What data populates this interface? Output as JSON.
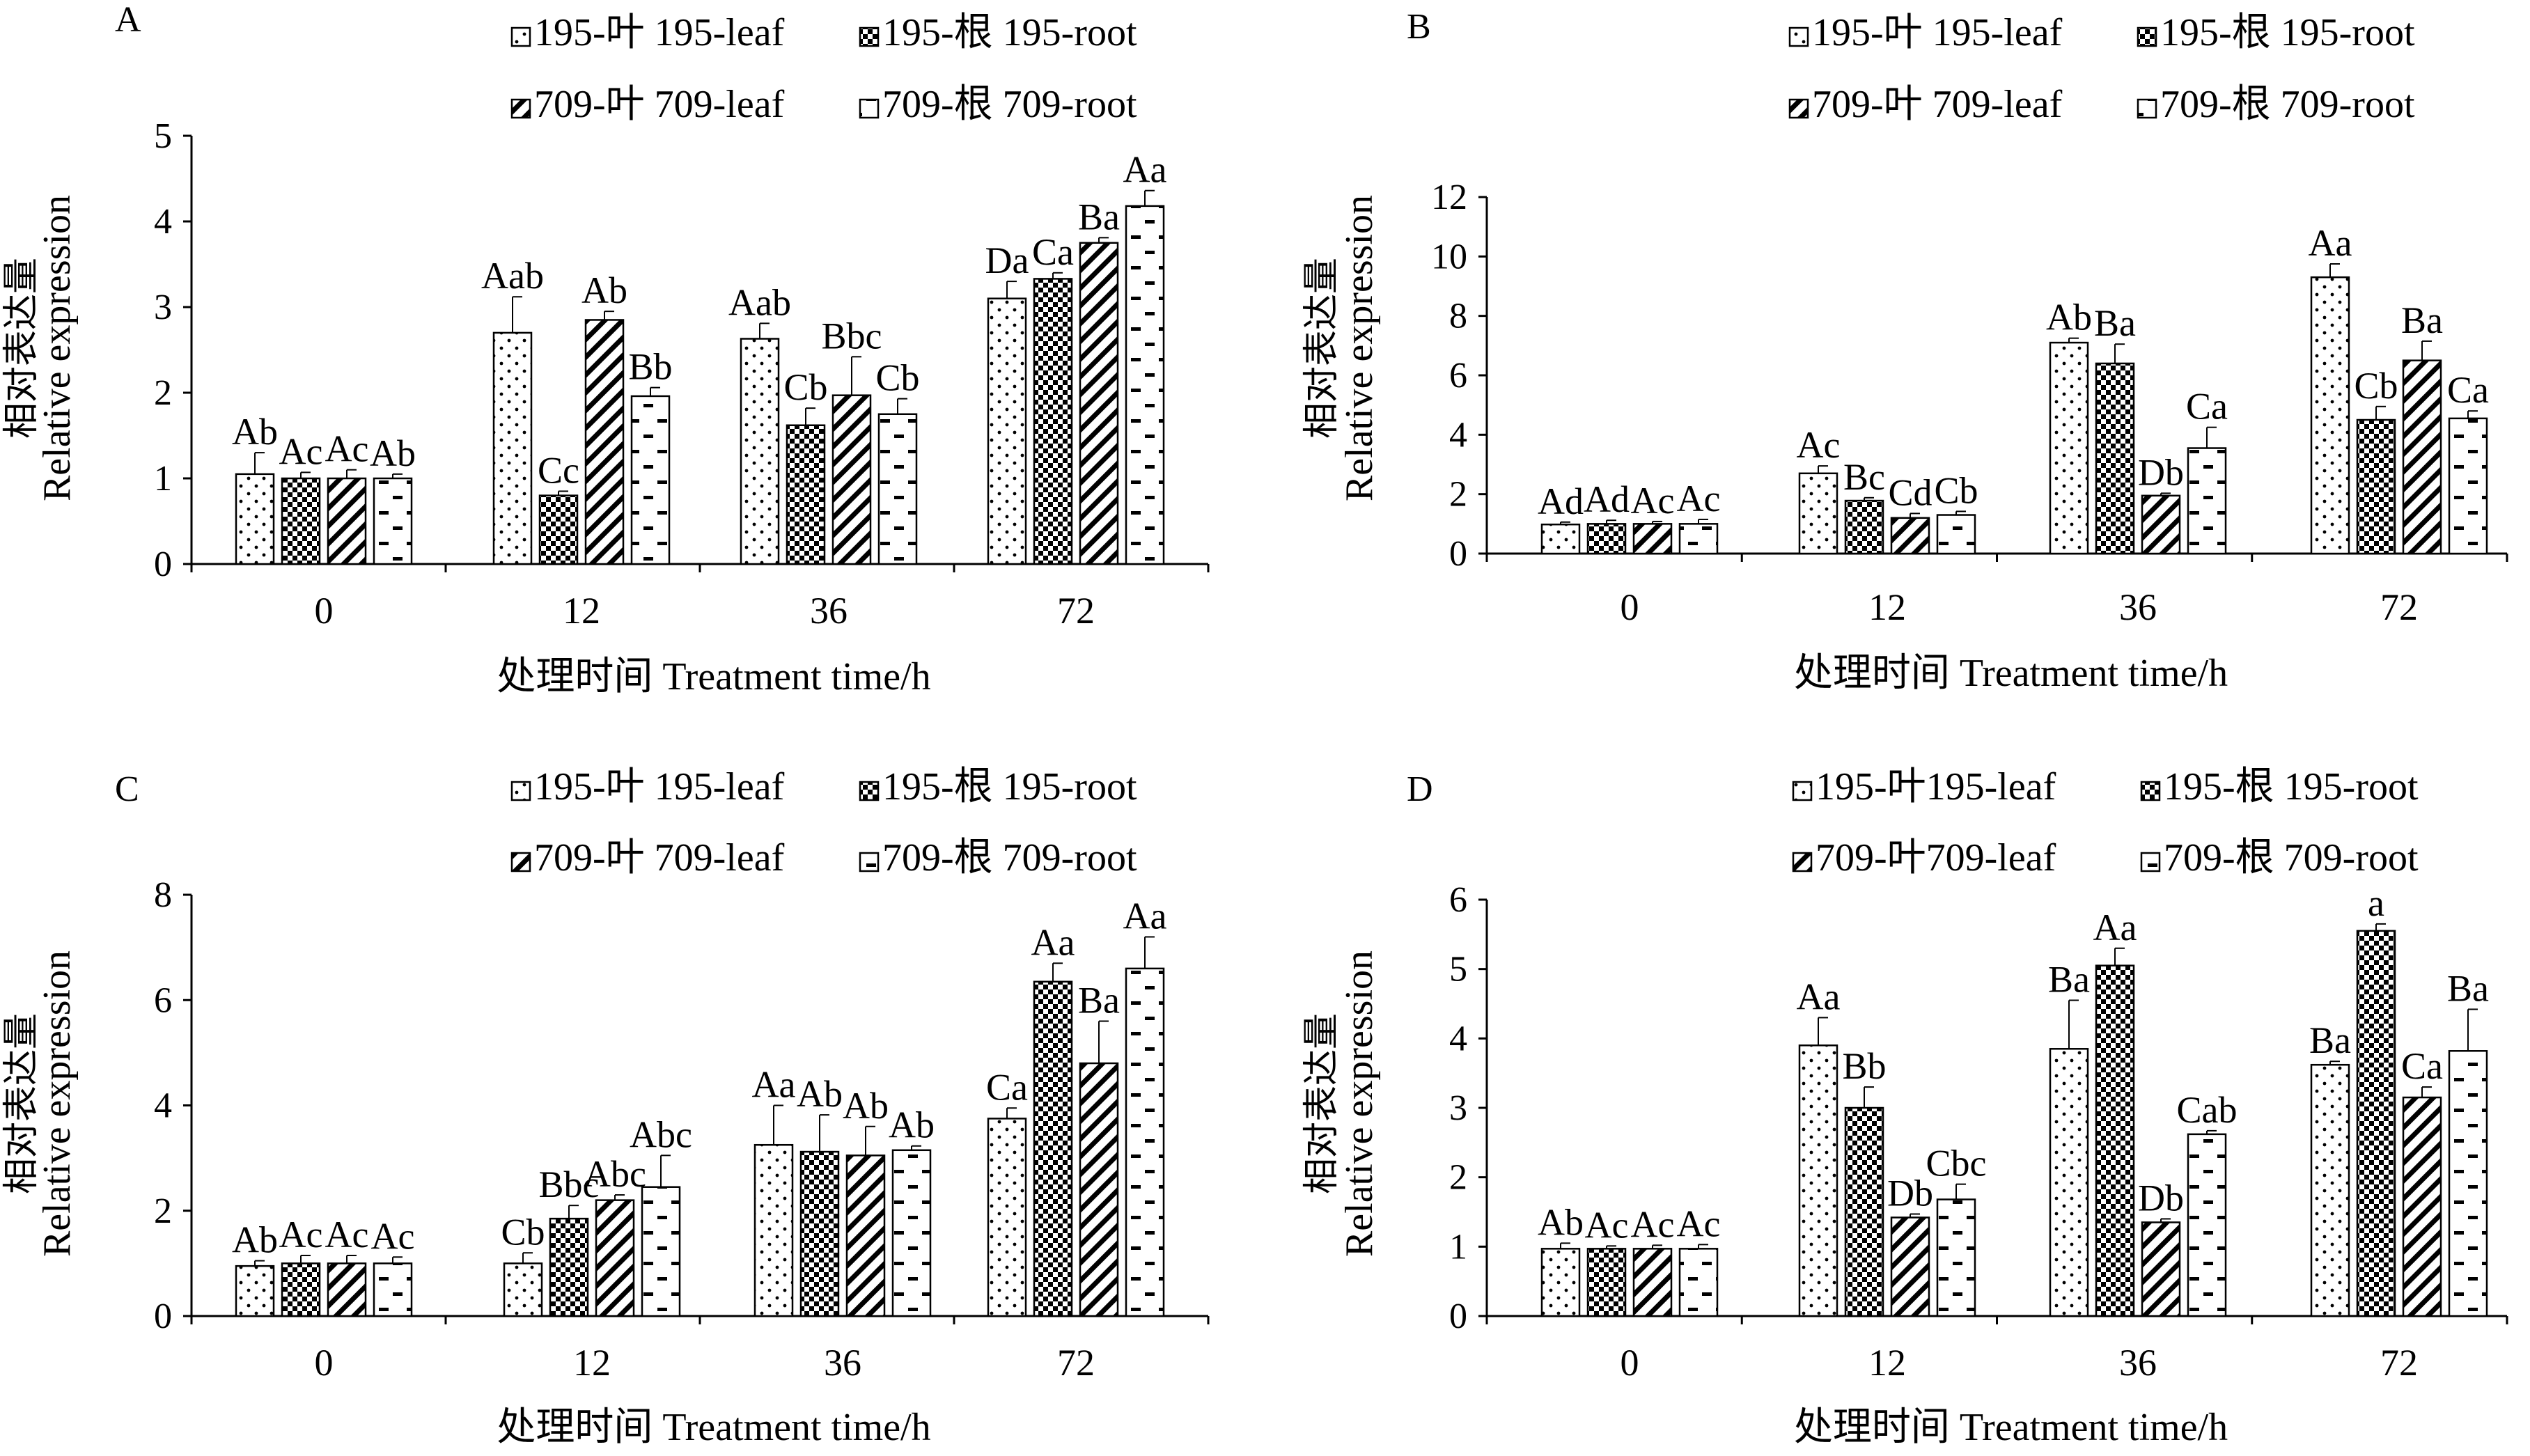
{
  "figure": {
    "legend_labels": [
      "195-叶 195-leaf",
      "195-根 195-root",
      "709-叶 709-leaf",
      "709-根 709-root"
    ],
    "legend_labels_d": [
      "195-叶195-leaf",
      "195-根 195-root",
      "709-叶709-leaf",
      "709-根 709-root"
    ],
    "x_label": "处理时间 Treatment time/h",
    "y_label_cn": "相对表达量",
    "y_label_en": "Relative expression"
  },
  "chart_data": [
    {
      "panel": "A",
      "type": "bar",
      "xlabel": "处理时间 Treatment time/h",
      "ylabel": "相对表达量 Relative expression",
      "categories": [
        "0",
        "12",
        "36",
        "72"
      ],
      "ylim": [
        0,
        5
      ],
      "yticks": [
        "0",
        "1",
        "2",
        "3",
        "4",
        "5"
      ],
      "series": [
        {
          "name": "195-叶 195-leaf",
          "values": [
            1.05,
            2.7,
            2.63,
            3.1
          ],
          "errors": [
            0.25,
            0.42,
            0.18,
            0.2
          ],
          "labels": [
            "Ab",
            "Aab",
            "Aab",
            "Da"
          ]
        },
        {
          "name": "195-根 195-root",
          "values": [
            1.0,
            0.8,
            1.62,
            3.33
          ],
          "errors": [
            0.07,
            0.05,
            0.2,
            0.07
          ],
          "labels": [
            "Ac",
            "Cc",
            "Cb",
            "Ca"
          ]
        },
        {
          "name": "709-叶 709-leaf",
          "values": [
            1.0,
            2.85,
            1.97,
            3.75
          ],
          "errors": [
            0.1,
            0.1,
            0.45,
            0.06
          ],
          "labels": [
            "Ac",
            "Ab",
            "Bbc",
            "Ba"
          ]
        },
        {
          "name": "709-根 709-root",
          "values": [
            1.0,
            1.96,
            1.75,
            4.18
          ],
          "errors": [
            0.05,
            0.1,
            0.18,
            0.18
          ],
          "labels": [
            "Ab",
            "Bb",
            "Cb",
            "Aa"
          ]
        }
      ]
    },
    {
      "panel": "B",
      "type": "bar",
      "xlabel": "处理时间 Treatment time/h",
      "ylabel": "相对表达量 Relative expression",
      "categories": [
        "0",
        "12",
        "36",
        "72"
      ],
      "ylim": [
        0,
        12
      ],
      "yticks": [
        "0",
        "2",
        "4",
        "6",
        "8",
        "10",
        "12"
      ],
      "series": [
        {
          "name": "195-叶 195-leaf",
          "values": [
            0.98,
            2.7,
            7.1,
            9.3
          ],
          "errors": [
            0.08,
            0.25,
            0.15,
            0.45
          ],
          "labels": [
            "Ad",
            "Ac",
            "Ab",
            "Aa"
          ]
        },
        {
          "name": "195-根 195-root",
          "values": [
            1.0,
            1.78,
            6.4,
            4.5
          ],
          "errors": [
            0.12,
            0.1,
            0.65,
            0.45
          ],
          "labels": [
            "Ad",
            "Bc",
            "Ba",
            "Cb"
          ]
        },
        {
          "name": "709-叶 709-leaf",
          "values": [
            1.0,
            1.2,
            1.95,
            6.5
          ],
          "errors": [
            0.08,
            0.15,
            0.08,
            0.65
          ],
          "labels": [
            "Ac",
            "Cd",
            "Db",
            "Ba"
          ]
        },
        {
          "name": "709-根 709-root",
          "values": [
            1.0,
            1.3,
            3.55,
            4.55
          ],
          "errors": [
            0.15,
            0.12,
            0.7,
            0.25
          ],
          "labels": [
            "Ac",
            "Cb",
            "Ca",
            "Ca"
          ]
        }
      ]
    },
    {
      "panel": "C",
      "type": "bar",
      "xlabel": "处理时间 Treatment time/h",
      "ylabel": "相对表达量 Relative expression",
      "categories": [
        "0",
        "12",
        "36",
        "72"
      ],
      "ylim": [
        0,
        8
      ],
      "yticks": [
        "0",
        "2",
        "4",
        "6",
        "8"
      ],
      "series": [
        {
          "name": "195-叶 195-leaf",
          "values": [
            0.95,
            1.0,
            3.25,
            3.75
          ],
          "errors": [
            0.1,
            0.2,
            0.75,
            0.2
          ],
          "labels": [
            "Ab",
            "Cb",
            "Aa",
            "Ca"
          ]
        },
        {
          "name": "195-根 195-root",
          "values": [
            1.0,
            1.85,
            3.12,
            6.35
          ],
          "errors": [
            0.15,
            0.25,
            0.7,
            0.35
          ],
          "labels": [
            "Ac",
            "Bbc",
            "Ab",
            "Aa"
          ]
        },
        {
          "name": "709-叶 709-leaf",
          "values": [
            1.0,
            2.2,
            3.05,
            4.8
          ],
          "errors": [
            0.15,
            0.1,
            0.55,
            0.8
          ],
          "labels": [
            "Ac",
            "Abc",
            "Ab",
            "Ba"
          ]
        },
        {
          "name": "709-根 709-root",
          "values": [
            1.0,
            2.45,
            3.15,
            6.6
          ],
          "errors": [
            0.12,
            0.6,
            0.08,
            0.6
          ],
          "labels": [
            "Ac",
            "Abc",
            "Ab",
            "Aa"
          ]
        }
      ]
    },
    {
      "panel": "D",
      "type": "bar",
      "xlabel": "处理时间 Treatment time/h",
      "ylabel": "相对表达量 Relative expression",
      "categories": [
        "0",
        "12",
        "36",
        "72"
      ],
      "ylim": [
        0,
        6
      ],
      "yticks": [
        "0",
        "1",
        "2",
        "3",
        "4",
        "5",
        "6"
      ],
      "series": [
        {
          "name": "195-叶195-leaf",
          "values": [
            0.97,
            3.9,
            3.85,
            3.62
          ],
          "errors": [
            0.08,
            0.4,
            0.7,
            0.05
          ],
          "labels": [
            "Ab",
            "Aa",
            "Ba",
            "Ba"
          ]
        },
        {
          "name": "195-根 195-root",
          "values": [
            0.97,
            3.0,
            5.05,
            5.55
          ],
          "errors": [
            0.04,
            0.3,
            0.25,
            0.1
          ],
          "labels": [
            "Ac",
            "Bb",
            "Aa",
            "a"
          ]
        },
        {
          "name": "709-叶709-leaf",
          "values": [
            0.97,
            1.42,
            1.35,
            3.15
          ],
          "errors": [
            0.05,
            0.05,
            0.05,
            0.15
          ],
          "labels": [
            "Ac",
            "Db",
            "Db",
            "Ca"
          ]
        },
        {
          "name": "709-根 709-root",
          "values": [
            0.97,
            1.68,
            2.62,
            3.82
          ],
          "errors": [
            0.06,
            0.22,
            0.05,
            0.6
          ],
          "labels": [
            "Ac",
            "Cbc",
            "Cab",
            "Ba"
          ]
        }
      ]
    }
  ]
}
